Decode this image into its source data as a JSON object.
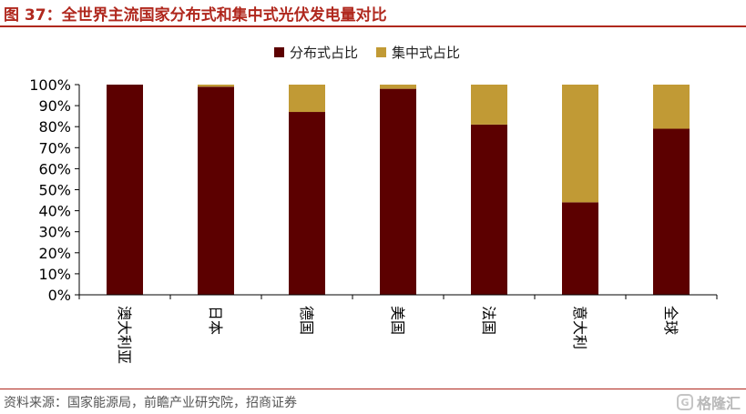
{
  "figure": {
    "title": "图 37：全世界主流国家分布式和集中式光伏发电量对比",
    "source": "资料来源：国家能源局，前瞻产业研究院，招商证券",
    "watermark": "格隆汇",
    "watermark_icon": "logo-icon"
  },
  "colors": {
    "title": "#b0281e",
    "distributed": "#5c0000",
    "centralized": "#c19a35",
    "axis": "#000000"
  },
  "chart_data": {
    "type": "bar",
    "stacked": true,
    "categories": [
      "澳大利亚",
      "日本",
      "德国",
      "美国",
      "法国",
      "意大利",
      "全球"
    ],
    "series": [
      {
        "name": "分布式占比",
        "values": [
          100,
          99,
          87,
          98,
          81,
          44,
          79
        ]
      },
      {
        "name": "集中式占比",
        "values": [
          0,
          1,
          13,
          2,
          19,
          56,
          21
        ]
      }
    ],
    "yticks": [
      "0%",
      "10%",
      "20%",
      "30%",
      "40%",
      "50%",
      "60%",
      "70%",
      "80%",
      "90%",
      "100%"
    ],
    "ylim": [
      0,
      100
    ],
    "ylabel": "",
    "xlabel": "",
    "legend_position": "top-center",
    "grid": false
  }
}
